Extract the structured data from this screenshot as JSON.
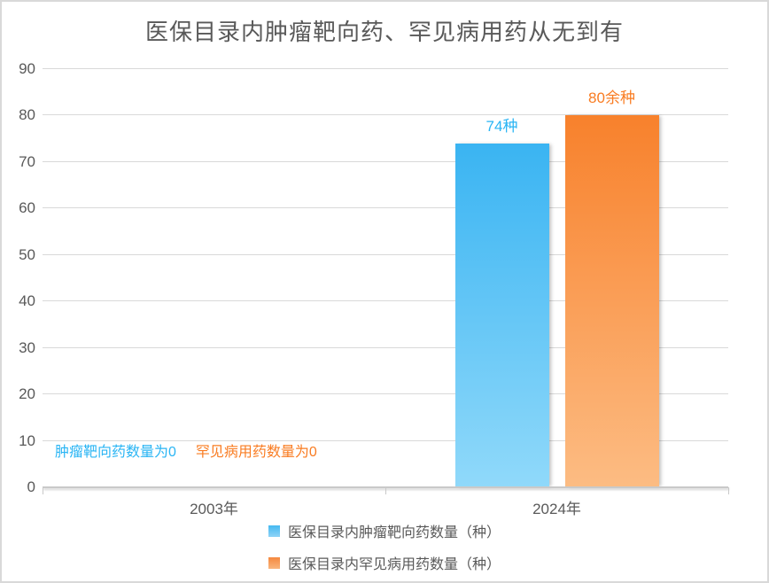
{
  "title": "医保目录内肿瘤靶向药、罕见病用药从无到有",
  "colors": {
    "title_text": "#595959",
    "axis_text": "#595959",
    "gridline": "#d9d9d9",
    "axis_line": "#c9c9c9",
    "background": "#ffffff",
    "border": "#d9d9d9"
  },
  "chart_data": {
    "type": "bar",
    "title": "医保目录内肿瘤靶向药、罕见病用药从无到有",
    "categories": [
      "2003年",
      "2024年"
    ],
    "series": [
      {
        "name": "医保目录内肿瘤靶向药数量（种）",
        "values": [
          0,
          74
        ],
        "bar_labels": [
          "",
          "74种"
        ],
        "color_top": "#3ab4f2",
        "color_bottom": "#90d9fa",
        "legend_color_top": "#45b9f1",
        "legend_color_bottom": "#8fd3f6",
        "label_color": "#2ab5f4"
      },
      {
        "name": "医保目录内罕见病用药数量（种）",
        "values": [
          0,
          80
        ],
        "bar_labels": [
          "",
          "80余种"
        ],
        "color_top": "#f8812c",
        "color_bottom": "#fcbc83",
        "legend_color_top": "#f5893f",
        "legend_color_bottom": "#f9b57c",
        "label_color": "#f97c22"
      }
    ],
    "annotations": [
      {
        "text": "肿瘤靶向药数量为0",
        "color": "#2ab5f4"
      },
      {
        "text": "罕见病用药数量为0",
        "color": "#f97c22"
      }
    ],
    "xlabel": "",
    "ylabel": "",
    "ylim": [
      0,
      90
    ],
    "yticks": [
      0,
      10,
      20,
      30,
      40,
      50,
      60,
      70,
      80,
      90
    ],
    "grid": true,
    "legend_position": "bottom"
  }
}
